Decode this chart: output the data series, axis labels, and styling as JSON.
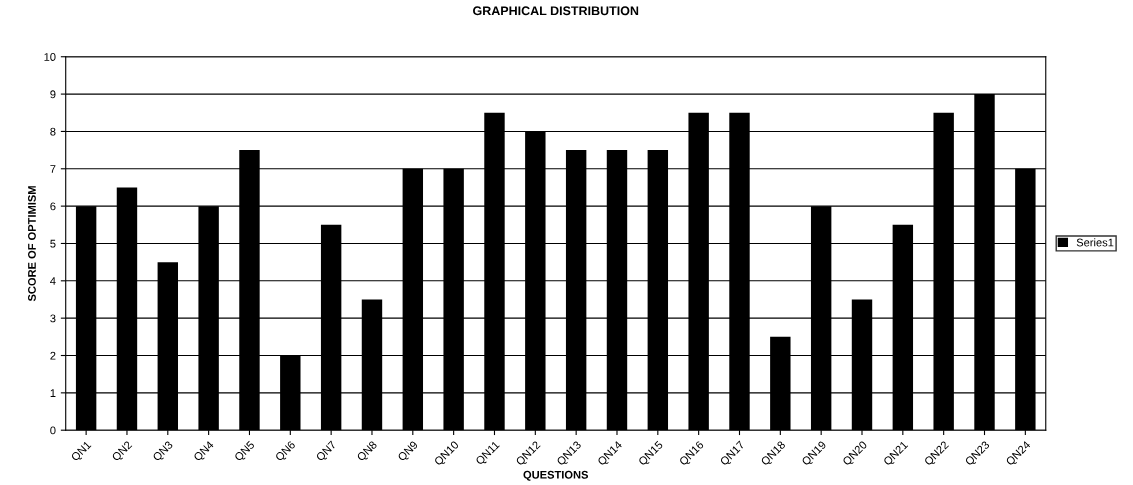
{
  "chart_data": {
    "type": "bar",
    "title": "GRAPHICAL DISTRIBUTION",
    "xlabel": "QUESTIONS",
    "ylabel": "SCORE OF OPTIMISM",
    "categories": [
      "QN1",
      "QN2",
      "QN3",
      "QN4",
      "QN5",
      "QN6",
      "QN7",
      "QN8",
      "QN9",
      "QN10",
      "QN11",
      "QN12",
      "QN13",
      "QN14",
      "QN15",
      "QN16",
      "QN17",
      "QN18",
      "QN19",
      "QN20",
      "QN21",
      "QN22",
      "QN23",
      "QN24"
    ],
    "series": [
      {
        "name": "Series1",
        "color": "#000000",
        "values": [
          6,
          6.5,
          4.5,
          6,
          7.5,
          2,
          5.5,
          3.5,
          7,
          7,
          8.5,
          8,
          7.5,
          7.5,
          7.5,
          8.5,
          8.5,
          2.5,
          6,
          3.5,
          5.5,
          8.5,
          9,
          7
        ]
      }
    ],
    "ylim": [
      0,
      10
    ],
    "yticks": [
      0,
      1,
      2,
      3,
      4,
      5,
      6,
      7,
      8,
      9,
      10
    ],
    "grid": "y",
    "legend": "right"
  }
}
